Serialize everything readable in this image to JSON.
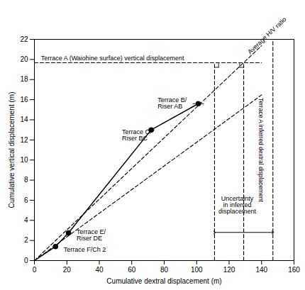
{
  "chart_data": {
    "type": "line",
    "xlabel": "Cumulative dextral displacement (m)",
    "ylabel": "Cumulative vertical displacement (m)",
    "xlim": [
      0,
      160
    ],
    "ylim": [
      0,
      22
    ],
    "xticks": [
      0,
      20,
      40,
      60,
      80,
      100,
      120,
      140,
      160
    ],
    "yticks": [
      0,
      2,
      4,
      6,
      8,
      10,
      12,
      14,
      16,
      18,
      20,
      22
    ],
    "color": "#000000",
    "marker": "circle",
    "line": {
      "x": [
        0,
        13,
        21,
        72,
        101
      ],
      "y": [
        0,
        1.4,
        2.75,
        13.0,
        15.6
      ],
      "line_style": "solid"
    },
    "points": [
      {
        "x": 13,
        "y": 1.4,
        "xerr": 1.5,
        "yerr": 0.05,
        "label": "Terrace F/Ch 2",
        "label_x": 18,
        "label_y": 1.1
      },
      {
        "x": 21,
        "y": 2.75,
        "xerr": 1.5,
        "yerr": 0.1,
        "label": "Terrace E/\nRiser DE",
        "label_x": 26,
        "label_y": 2.55
      },
      {
        "x": 72,
        "y": 13.0,
        "xerr": 2.0,
        "yerr": 0.1,
        "label": "Terrace C/\nRiser BC",
        "label_x": 54,
        "label_y": 12.5
      },
      {
        "x": 101,
        "y": 15.6,
        "xerr": 3.5,
        "yerr": 0.1,
        "label": "Terrace B/\nRiser AB",
        "label_x": 76,
        "label_y": 15.65
      }
    ],
    "reference_lines": [
      {
        "x": [
          0,
          140
        ],
        "y": [
          0,
          21.3738
        ],
        "line_style": "dashed"
      },
      {
        "x": [
          0,
          140
        ],
        "y": [
          0,
          16.471
        ],
        "line_style": "dashed"
      },
      {
        "x": [
          0,
          140
        ],
        "y": [
          19.67,
          19.67
        ],
        "line_style": "dashed"
      },
      {
        "x": [
          111,
          111
        ],
        "y": [
          0,
          19.67
        ],
        "line_style": "dashed"
      },
      {
        "x": [
          129,
          129
        ],
        "y": [
          0,
          19.67
        ],
        "line_style": "dashed"
      },
      {
        "x": [
          147,
          147
        ],
        "y": [
          0,
          22
        ],
        "line_style": "dashed"
      }
    ],
    "corner_marks": [
      {
        "x": [
          111,
          113.5
        ],
        "y": [
          19.22,
          19.22
        ]
      },
      {
        "x": [
          113.5,
          113.5
        ],
        "y": [
          19.67,
          19.22
        ]
      },
      {
        "x": [
          126.5,
          129
        ],
        "y": [
          19.22,
          19.22
        ]
      },
      {
        "x": [
          126.5,
          126.5
        ],
        "y": [
          19.67,
          19.22
        ]
      }
    ],
    "arrow": {
      "x": [
        111,
        147
      ],
      "y": [
        2.8,
        2.8
      ]
    },
    "annotations": [
      {
        "text": "Terrace A (Waiohine surface) vertical displacement",
        "x": 4,
        "y": 19.92
      },
      {
        "text": "Average H/V ratio",
        "x": 133,
        "y": 20.5
      },
      {
        "text": "Terrace A inferred dextral displacement",
        "x": 139.5,
        "y": 11
      },
      {
        "text": "Uncertainty\nin inferred\ndisplacement",
        "x": 125,
        "y": 5.5
      }
    ]
  }
}
